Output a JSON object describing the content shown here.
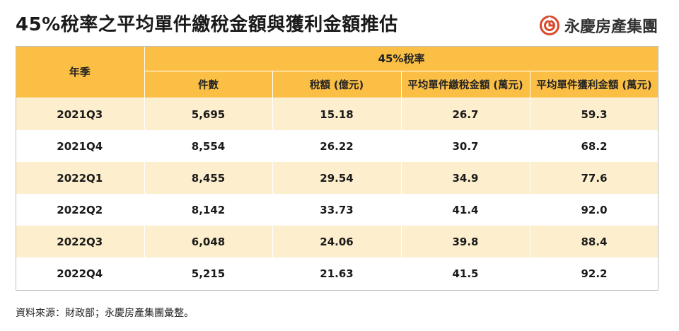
{
  "title": "45%稅率之平均單件繳稅金額與獲利金額推估",
  "brand": {
    "name": "永慶房產集團",
    "logo_icon": "yungching-logo-icon",
    "logo_color": "#d9492b"
  },
  "table": {
    "header": {
      "year_label": "年季",
      "group_label": "45%稅率",
      "columns": [
        "件數",
        "稅額 (億元)",
        "平均單件繳稅金額 (萬元)",
        "平均單件獲利金額 (萬元)"
      ]
    },
    "rows": [
      [
        "2021Q3",
        "5,695",
        "15.18",
        "26.7",
        "59.3"
      ],
      [
        "2021Q4",
        "8,554",
        "26.22",
        "30.7",
        "68.2"
      ],
      [
        "2022Q1",
        "8,455",
        "29.54",
        "34.9",
        "77.6"
      ],
      [
        "2022Q2",
        "8,142",
        "33.73",
        "41.4",
        "92.0"
      ],
      [
        "2022Q3",
        "6,048",
        "24.06",
        "39.8",
        "88.4"
      ],
      [
        "2022Q4",
        "5,215",
        "21.63",
        "41.5",
        "92.2"
      ]
    ],
    "colors": {
      "header": "#fbbf45",
      "stripe": "#fdeecd"
    }
  },
  "source": "資料來源：財政部；永慶房產集團彙整。"
}
